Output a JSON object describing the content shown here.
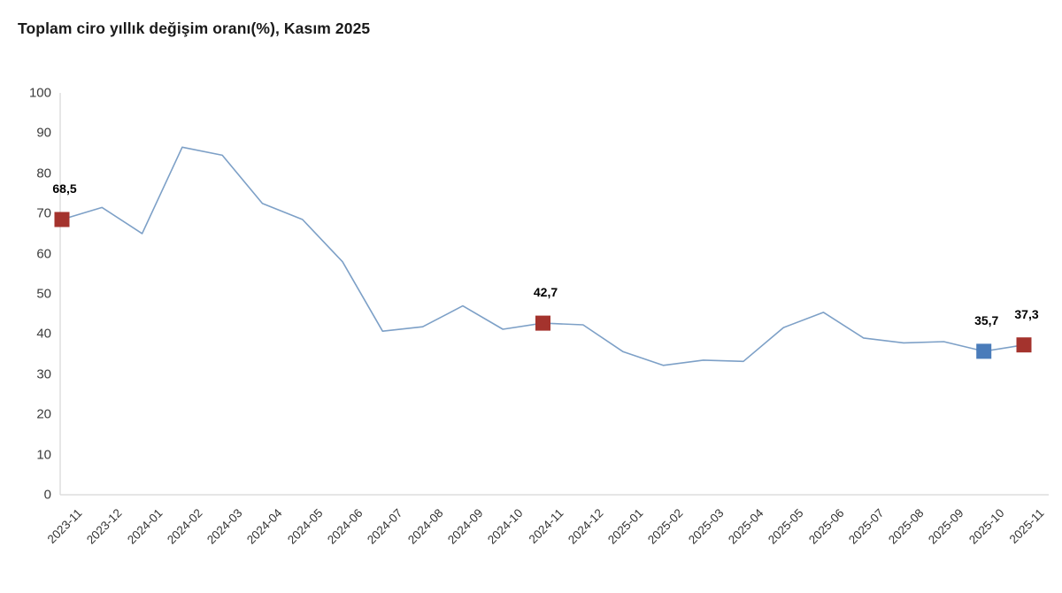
{
  "header": {
    "title": "Toplam ciro yıllık değişim oranı(%), Kasım 2025"
  },
  "colors": {
    "line": "#7da0c7",
    "axis": "#d8d8d8",
    "marker_red": "#a4332d",
    "marker_blue": "#4a7cba",
    "title_text": "#1a1a1a",
    "tick_text": "#3c3c3c"
  },
  "chart_data": {
    "type": "line",
    "title": "Toplam ciro yıllık değişim oranı(%), Kasım 2025",
    "xlabel": "",
    "ylabel": "",
    "ylim": [
      0,
      100
    ],
    "ytick_step": 10,
    "grid": false,
    "legend_position": "none",
    "categories": [
      "2023-11",
      "2023-12",
      "2024-01",
      "2024-02",
      "2024-03",
      "2024-04",
      "2024-05",
      "2024-06",
      "2024-07",
      "2024-08",
      "2024-09",
      "2024-10",
      "2024-11",
      "2024-12",
      "2025-01",
      "2025-02",
      "2025-03",
      "2025-04",
      "2025-05",
      "2025-06",
      "2025-07",
      "2025-08",
      "2025-09",
      "2025-10",
      "2025-11"
    ],
    "series": [
      {
        "name": "Toplam ciro yıllık değişim oranı (%)",
        "values": [
          68.5,
          71.5,
          65.0,
          86.5,
          84.5,
          72.5,
          68.5,
          58.0,
          40.7,
          41.8,
          47.0,
          41.2,
          42.7,
          42.3,
          35.6,
          32.2,
          33.5,
          33.2,
          41.6,
          45.4,
          39.0,
          37.8,
          38.1,
          35.7,
          37.3
        ]
      }
    ],
    "labeled_points": [
      {
        "index": 0,
        "category": "2023-11",
        "value": 68.5,
        "label": "68,5",
        "marker_color": "#a4332d"
      },
      {
        "index": 12,
        "category": "2024-11",
        "value": 42.7,
        "label": "42,7",
        "marker_color": "#a4332d"
      },
      {
        "index": 23,
        "category": "2025-10",
        "value": 35.7,
        "label": "35,7",
        "marker_color": "#4a7cba"
      },
      {
        "index": 24,
        "category": "2025-11",
        "value": 37.3,
        "label": "37,3",
        "marker_color": "#a4332d"
      }
    ]
  }
}
